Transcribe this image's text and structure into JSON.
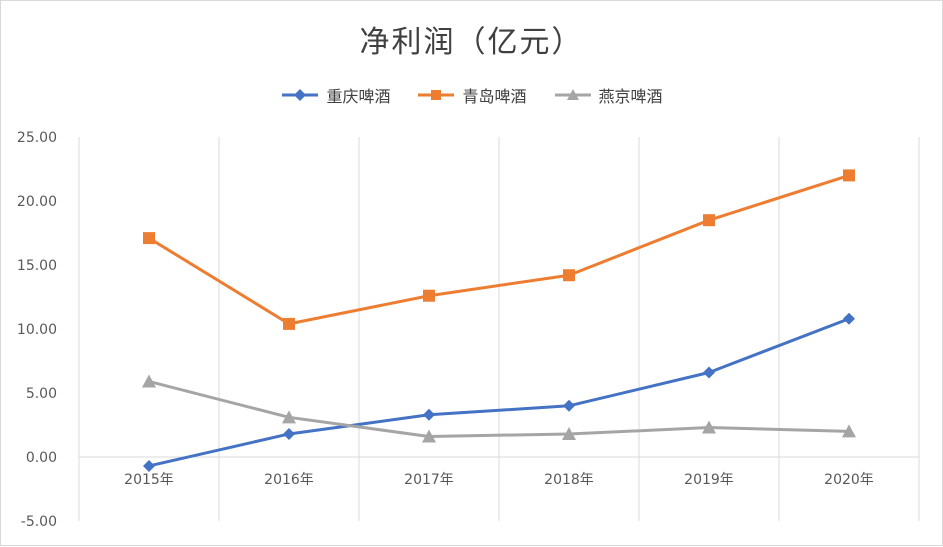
{
  "chart_data": {
    "type": "line",
    "title": "净利润（亿元）",
    "categories": [
      "2015年",
      "2016年",
      "2017年",
      "2018年",
      "2019年",
      "2020年"
    ],
    "ylim": [
      -5,
      25
    ],
    "yticks": [
      "-5.00",
      "0.00",
      "5.00",
      "10.00",
      "15.00",
      "20.00",
      "25.00"
    ],
    "grid": "vertical",
    "legend_position": "top",
    "series": [
      {
        "name": "重庆啤酒",
        "color": "#4472c4",
        "marker": "diamond",
        "values": [
          -0.7,
          1.8,
          3.3,
          4.0,
          6.6,
          10.8
        ]
      },
      {
        "name": "青岛啤酒",
        "color": "#ed7d31",
        "marker": "square",
        "values": [
          17.1,
          10.4,
          12.6,
          14.2,
          18.5,
          22.0
        ]
      },
      {
        "name": "燕京啤酒",
        "color": "#a5a5a5",
        "marker": "triangle",
        "values": [
          5.9,
          3.1,
          1.6,
          1.8,
          2.3,
          2.0
        ]
      }
    ]
  }
}
